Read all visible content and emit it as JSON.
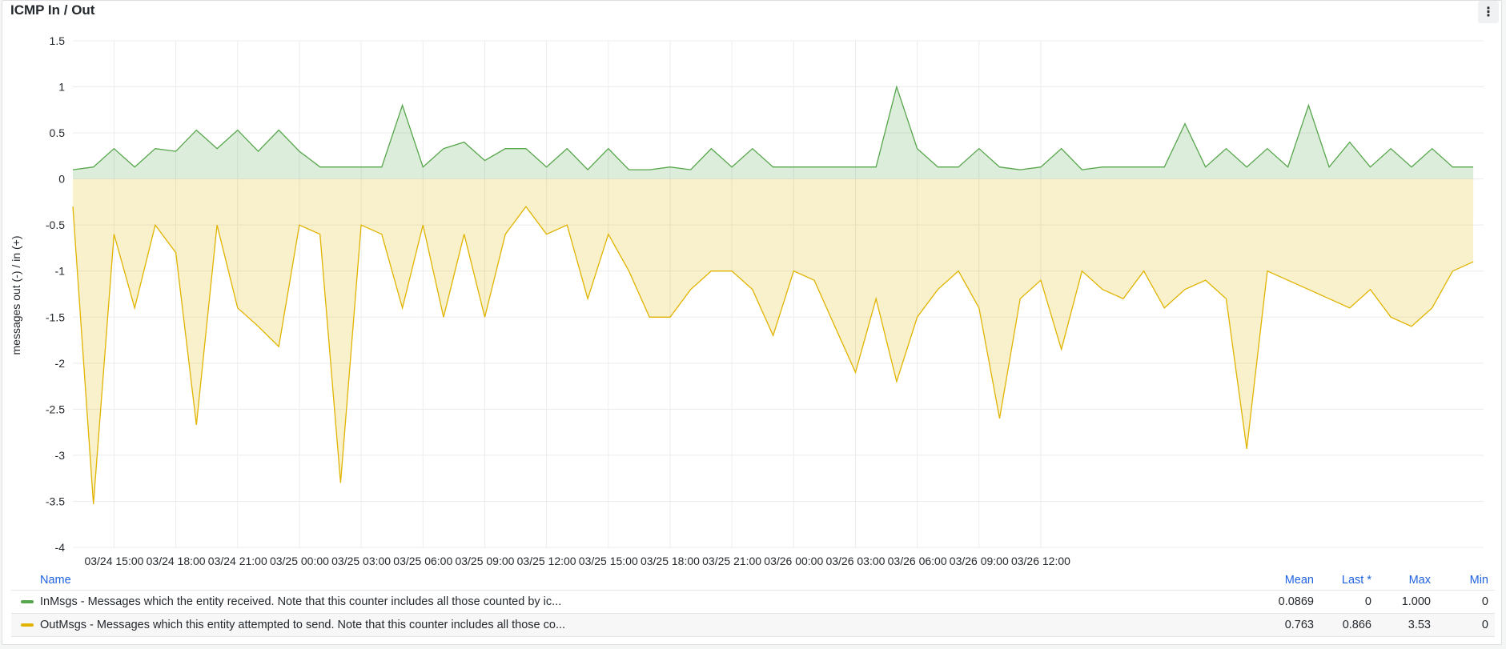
{
  "panel": {
    "title": "ICMP In / Out",
    "menu_icon": "kebab-menu-icon"
  },
  "legend": {
    "headers": {
      "name": "Name",
      "mean": "Mean",
      "last": "Last *",
      "max": "Max",
      "min": "Min"
    },
    "rows": [
      {
        "name": "InMsgs - Messages which the entity received. Note that this counter includes all those counted by ic...",
        "color": "#56a64b",
        "mean": "0.0869",
        "last": "0",
        "max": "1.000",
        "min": "0"
      },
      {
        "name": "OutMsgs - Messages which this entity attempted to send. Note that this counter includes all those co...",
        "color": "#e0b400",
        "mean": "0.763",
        "last": "0.866",
        "max": "3.53",
        "min": "0"
      }
    ]
  },
  "chart_data": {
    "type": "area",
    "ylabel": "messages out (-) / in (+)",
    "ylim": [
      -4,
      1.5
    ],
    "y_ticks": [
      1.5,
      1,
      0.5,
      0,
      -0.5,
      -1,
      -1.5,
      -2,
      -2.5,
      -3,
      -3.5,
      -4
    ],
    "y_tick_labels": [
      "1.5",
      "1",
      "0.5",
      "0",
      "-0.5",
      "-1",
      "-1.5",
      "-2",
      "-2.5",
      "-3",
      "-3.5",
      "-4"
    ],
    "x_range_hours": [
      0,
      68.5
    ],
    "x_tick_hours": [
      2,
      5,
      8,
      11,
      14,
      17,
      20,
      23,
      26,
      29,
      32,
      35,
      38,
      41,
      44,
      47
    ],
    "x_tick_labels": [
      "03/24 15:00",
      "03/24 18:00",
      "03/24 21:00",
      "03/25 00:00",
      "03/25 03:00",
      "03/25 06:00",
      "03/25 09:00",
      "03/25 12:00",
      "03/25 15:00",
      "03/25 18:00",
      "03/25 21:00",
      "03/26 00:00",
      "03/26 03:00",
      "03/26 06:00",
      "03/26 09:00",
      "03/26 12:00"
    ],
    "grid": true,
    "series": [
      {
        "name": "InMsgs",
        "color": "#56a64b",
        "x": [
          0,
          1,
          2,
          3,
          4,
          5,
          6,
          7,
          8,
          9,
          10,
          11,
          12,
          13,
          14,
          15,
          16,
          17,
          18,
          19,
          20,
          21,
          22,
          23,
          24,
          25,
          26,
          27,
          28,
          29,
          30,
          31,
          32,
          33,
          34,
          35,
          36,
          37,
          38,
          39,
          40,
          41,
          42,
          43,
          44,
          45,
          46,
          47,
          48,
          49,
          50,
          51,
          52,
          53,
          54,
          55,
          56,
          57,
          58,
          59,
          60,
          61,
          62,
          63,
          64,
          65,
          66,
          67,
          68
        ],
        "values": [
          0.1,
          0.13,
          0.33,
          0.13,
          0.33,
          0.3,
          0.53,
          0.33,
          0.53,
          0.3,
          0.53,
          0.3,
          0.13,
          0.13,
          0.13,
          0.13,
          0.8,
          0.13,
          0.33,
          0.4,
          0.2,
          0.33,
          0.33,
          0.13,
          0.33,
          0.1,
          0.33,
          0.1,
          0.1,
          0.13,
          0.1,
          0.33,
          0.13,
          0.33,
          0.13,
          0.13,
          0.13,
          0.13,
          0.13,
          0.13,
          1.0,
          0.33,
          0.13,
          0.13,
          0.33,
          0.13,
          0.1,
          0.13,
          0.33,
          0.1,
          0.13,
          0.13,
          0.13,
          0.13,
          0.6,
          0.13,
          0.33,
          0.13,
          0.33,
          0.13,
          0.8,
          0.13,
          0.4,
          0.13,
          0.33,
          0.13,
          0.33,
          0.13,
          0.13
        ]
      },
      {
        "name": "OutMsgs",
        "color": "#e0b400",
        "x": [
          0,
          1,
          2,
          3,
          4,
          5,
          6,
          7,
          8,
          9,
          10,
          11,
          12,
          13,
          14,
          15,
          16,
          17,
          18,
          19,
          20,
          21,
          22,
          23,
          24,
          25,
          26,
          27,
          28,
          29,
          30,
          31,
          32,
          33,
          34,
          35,
          36,
          37,
          38,
          39,
          40,
          41,
          42,
          43,
          44,
          45,
          46,
          47,
          48,
          49,
          50,
          51,
          52,
          53,
          54,
          55,
          56,
          57,
          58,
          59,
          60,
          61,
          62,
          63,
          64,
          65,
          66,
          67,
          68
        ],
        "values": [
          -0.3,
          -3.53,
          -0.6,
          -1.4,
          -0.5,
          -0.8,
          -2.67,
          -0.5,
          -1.4,
          -1.6,
          -1.82,
          -0.5,
          -0.6,
          -3.3,
          -0.5,
          -0.6,
          -1.4,
          -0.5,
          -1.5,
          -0.6,
          -1.5,
          -0.6,
          -0.3,
          -0.6,
          -0.5,
          -1.3,
          -0.6,
          -1.0,
          -1.5,
          -1.5,
          -1.2,
          -1.0,
          -1.0,
          -1.2,
          -1.7,
          -1.0,
          -1.1,
          -1.6,
          -2.1,
          -1.3,
          -2.2,
          -1.5,
          -1.2,
          -1.0,
          -1.4,
          -2.6,
          -1.3,
          -1.1,
          -1.85,
          -1.0,
          -1.2,
          -1.3,
          -1.0,
          -1.4,
          -1.2,
          -1.1,
          -1.3,
          -2.93,
          -1.0,
          -1.1,
          -1.2,
          -1.3,
          -1.4,
          -1.2,
          -1.5,
          -1.6,
          -1.4,
          -1.0,
          -0.9
        ]
      }
    ]
  }
}
